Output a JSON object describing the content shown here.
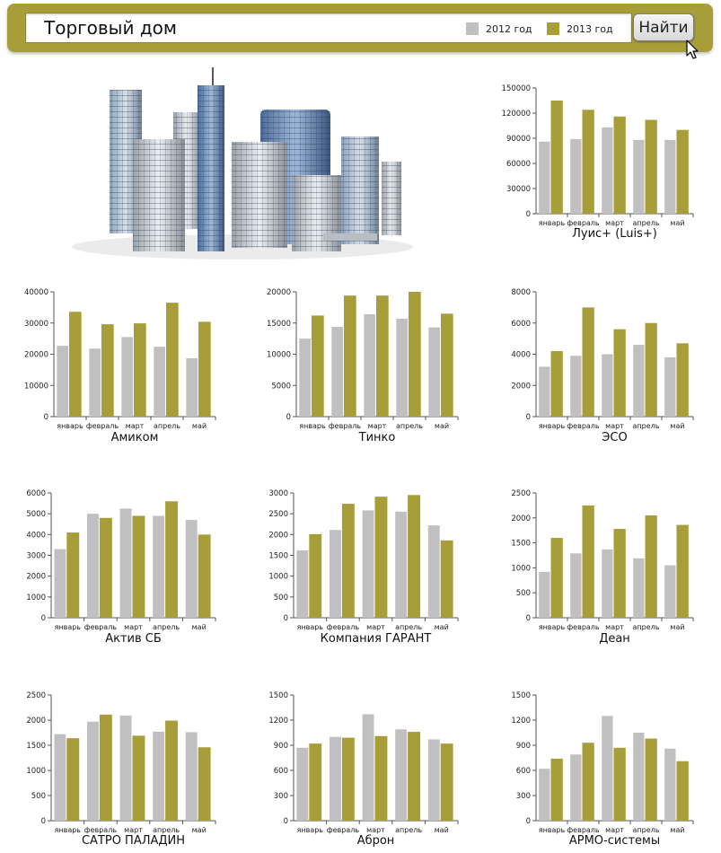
{
  "app": {
    "search": {
      "value": "Торговый дом"
    },
    "legend": [
      {
        "label": "2012 год",
        "color": "#c0c0c2"
      },
      {
        "label": "2013 год",
        "color": "#a89e39"
      }
    ],
    "find_button_label": "Найти",
    "colors": {
      "bar_background": "#a89e39",
      "series_2012": "#c0c0c2",
      "series_2013": "#a89e39"
    },
    "illustration": {
      "icon": "city-buildings-image"
    }
  },
  "chart_data": [
    {
      "type": "bar",
      "title": "Луис+ (Luis+)",
      "categories": [
        "январь",
        "февраль",
        "март",
        "апрель",
        "май"
      ],
      "yticks": [
        "0",
        "30000",
        "60000",
        "90000",
        "120000",
        "150000"
      ],
      "ylim": [
        0,
        150000
      ],
      "series": [
        {
          "name": "2012 год",
          "values": [
            86000,
            89000,
            103000,
            88000,
            88000
          ]
        },
        {
          "name": "2013 год",
          "values": [
            135000,
            124000,
            116000,
            112000,
            100000
          ]
        }
      ]
    },
    {
      "type": "bar",
      "title": "Амиком",
      "categories": [
        "январь",
        "февраль",
        "март",
        "апрель",
        "май"
      ],
      "yticks": [
        "0",
        "10000",
        "20000",
        "30000",
        "40000"
      ],
      "ylim": [
        0,
        40000
      ],
      "series": [
        {
          "name": "2012 год",
          "values": [
            22700,
            21800,
            25500,
            22400,
            18700
          ]
        },
        {
          "name": "2013 год",
          "values": [
            33600,
            29600,
            29900,
            36500,
            30400
          ]
        }
      ]
    },
    {
      "type": "bar",
      "title": "Тинко",
      "categories": [
        "январь",
        "февраль",
        "март",
        "апрель",
        "май"
      ],
      "yticks": [
        "0",
        "5000",
        "10000",
        "15000",
        "20000"
      ],
      "ylim": [
        0,
        20000
      ],
      "series": [
        {
          "name": "2012 год",
          "values": [
            12500,
            14400,
            16400,
            15700,
            14300
          ]
        },
        {
          "name": "2013 год",
          "values": [
            16200,
            19400,
            19400,
            20000,
            16500
          ]
        }
      ]
    },
    {
      "type": "bar",
      "title": "ЭСО",
      "categories": [
        "январь",
        "февраль",
        "март",
        "апрель",
        "май"
      ],
      "yticks": [
        "0",
        "2000",
        "4000",
        "6000",
        "8000"
      ],
      "ylim": [
        0,
        8000
      ],
      "series": [
        {
          "name": "2012 год",
          "values": [
            3200,
            3900,
            4000,
            4600,
            3800
          ]
        },
        {
          "name": "2013 год",
          "values": [
            4200,
            7000,
            5600,
            6000,
            4700
          ]
        }
      ]
    },
    {
      "type": "bar",
      "title": "Актив СБ",
      "categories": [
        "январь",
        "февраль",
        "март",
        "апрель",
        "май"
      ],
      "yticks": [
        "0",
        "1000",
        "2000",
        "3000",
        "4000",
        "5000",
        "6000"
      ],
      "ylim": [
        0,
        6000
      ],
      "series": [
        {
          "name": "2012 год",
          "values": [
            3300,
            5000,
            5250,
            4900,
            4700
          ]
        },
        {
          "name": "2013 год",
          "values": [
            4100,
            4800,
            4900,
            5600,
            4000
          ]
        }
      ]
    },
    {
      "type": "bar",
      "title": "Компания ГАРАНТ",
      "categories": [
        "январь",
        "февраль",
        "март",
        "апрель",
        "май"
      ],
      "yticks": [
        "0",
        "500",
        "1000",
        "1500",
        "2000",
        "2500",
        "3000"
      ],
      "ylim": [
        0,
        3000
      ],
      "series": [
        {
          "name": "2012 год",
          "values": [
            1620,
            2110,
            2580,
            2550,
            2220
          ]
        },
        {
          "name": "2013 год",
          "values": [
            2010,
            2740,
            2910,
            2950,
            1860
          ]
        }
      ]
    },
    {
      "type": "bar",
      "title": "Деан",
      "categories": [
        "январь",
        "февраль",
        "март",
        "апрель",
        "май"
      ],
      "yticks": [
        "0",
        "500",
        "1000",
        "1500",
        "2000",
        "2500"
      ],
      "ylim": [
        0,
        2500
      ],
      "series": [
        {
          "name": "2012 год",
          "values": [
            920,
            1290,
            1370,
            1190,
            1050
          ]
        },
        {
          "name": "2013 год",
          "values": [
            1600,
            2250,
            1780,
            2050,
            1860
          ]
        }
      ]
    },
    {
      "type": "bar",
      "title": "САТРО ПАЛАДИН",
      "categories": [
        "январь",
        "февраль",
        "март",
        "апрель",
        "май"
      ],
      "yticks": [
        "0",
        "500",
        "1000",
        "1500",
        "2000",
        "2500"
      ],
      "ylim": [
        0,
        2500
      ],
      "series": [
        {
          "name": "2012 год",
          "values": [
            1720,
            1970,
            2090,
            1770,
            1760
          ]
        },
        {
          "name": "2013 год",
          "values": [
            1640,
            2110,
            1690,
            1990,
            1460
          ]
        }
      ]
    },
    {
      "type": "bar",
      "title": "Аброн",
      "categories": [
        "январь",
        "февраль",
        "март",
        "апрель",
        "май"
      ],
      "yticks": [
        "0",
        "300",
        "600",
        "900",
        "1200",
        "1500"
      ],
      "ylim": [
        0,
        1500
      ],
      "series": [
        {
          "name": "2012 год",
          "values": [
            870,
            1000,
            1270,
            1090,
            970
          ]
        },
        {
          "name": "2013 год",
          "values": [
            920,
            990,
            1010,
            1060,
            920
          ]
        }
      ]
    },
    {
      "type": "bar",
      "title": "АРМО-системы",
      "categories": [
        "январь",
        "февраль",
        "март",
        "апрель",
        "май"
      ],
      "yticks": [
        "0",
        "300",
        "600",
        "900",
        "1200",
        "1500"
      ],
      "ylim": [
        0,
        1500
      ],
      "series": [
        {
          "name": "2012 год",
          "values": [
            620,
            790,
            1250,
            1050,
            860
          ]
        },
        {
          "name": "2013 год",
          "values": [
            740,
            930,
            870,
            980,
            710
          ]
        }
      ]
    }
  ]
}
